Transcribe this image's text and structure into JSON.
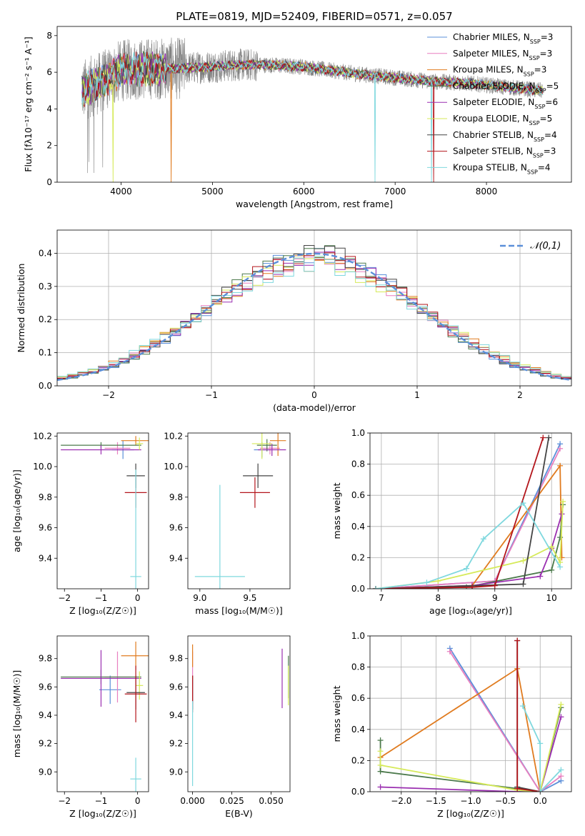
{
  "figure_title": "PLATE=0819, MJD=52409, FIBERID=0571, z=0.057",
  "colors": {
    "Chabrier MILES": "#5b8fd9",
    "Salpeter MILES": "#e87fbf",
    "Kroupa MILES": "#e07b1f",
    "Chabrier ELODIE": "#4c7a4c",
    "Salpeter ELODIE": "#9a2fb0",
    "Kroupa ELODIE": "#d6ea5a",
    "Chabrier STELIB": "#444444",
    "Salpeter STELIB": "#b3151b",
    "Kroupa STELIB": "#7fd8de",
    "data": "#808080",
    "normal": "#5b8fd9"
  },
  "chart_data": [
    {
      "id": "spectrum",
      "type": "line",
      "xlabel": "wavelength [Angstrom, rest frame]",
      "ylabel": "Flux [fλ10⁻¹⁷ erg cm⁻² s⁻¹ A⁻¹]",
      "xlim": [
        3300,
        8930
      ],
      "ylim": [
        0,
        8.5
      ],
      "xticks": [
        4000,
        5000,
        6000,
        7000,
        8000
      ],
      "yticks": [
        0,
        2,
        4,
        6,
        8
      ],
      "grid": false,
      "legend_position": "right",
      "legend": [
        {
          "name": "Chabrier MILES",
          "nssp": "3"
        },
        {
          "name": "Salpeter MILES",
          "nssp": "3"
        },
        {
          "name": "Kroupa MILES",
          "nssp": "3"
        },
        {
          "name": "Chabrier ELODIE",
          "nssp": "5"
        },
        {
          "name": "Salpeter ELODIE",
          "nssp": "6"
        },
        {
          "name": "Kroupa ELODIE",
          "nssp": "5"
        },
        {
          "name": "Chabrier STELIB",
          "nssp": "4"
        },
        {
          "name": "Salpeter STELIB",
          "nssp": "3"
        },
        {
          "name": "Kroupa STELIB",
          "nssp": "4"
        }
      ],
      "continuum": {
        "x": [
          3570,
          3800,
          4000,
          4300,
          4600,
          5000,
          5300,
          5600,
          6000,
          6300,
          6600,
          7000,
          7400,
          7800,
          8200,
          8600
        ],
        "y": [
          5.0,
          5.5,
          6.1,
          6.2,
          6.2,
          6.3,
          6.4,
          6.4,
          6.3,
          6.1,
          5.9,
          5.7,
          5.5,
          5.4,
          5.2,
          5.0
        ]
      }
    },
    {
      "id": "residual_histogram",
      "type": "step",
      "xlabel": "(data-model)/error",
      "ylabel": "Normed distribution",
      "xlim": [
        -2.5,
        2.5
      ],
      "ylim": [
        0,
        0.47
      ],
      "xticks": [
        -2,
        -1,
        0,
        1,
        2
      ],
      "yticks": [
        0.0,
        0.1,
        0.2,
        0.3,
        0.4
      ],
      "grid": true,
      "reference_curve": {
        "name": "𝒩(0,1)",
        "mean": 0,
        "sigma": 1
      },
      "bin_width": 0.1
    },
    {
      "id": "age_vs_Z",
      "type": "errorbar",
      "xlabel": "Z [log₁₀(Z/Z☉)]",
      "ylabel": "age  [log₁₀(age/yr)]",
      "xlim": [
        -2.2,
        0.3
      ],
      "ylim": [
        9.2,
        10.22
      ],
      "xticks": [
        -2,
        -1,
        0
      ],
      "yticks": [
        9.4,
        9.6,
        9.8,
        10.0,
        10.2
      ],
      "points": [
        {
          "model": "Chabrier MILES",
          "x": -0.4,
          "xerr": 0.3,
          "y": 10.11,
          "yerr": 0.06
        },
        {
          "model": "Salpeter MILES",
          "x": -0.55,
          "xerr": 0.35,
          "y": 10.12,
          "yerr": 0.04
        },
        {
          "model": "Kroupa MILES",
          "x": -0.05,
          "xerr": 0.4,
          "y": 10.17,
          "yerr": 0.03
        },
        {
          "model": "Chabrier ELODIE",
          "x": -1.0,
          "xerr": 1.1,
          "y": 10.14,
          "yerr": 0.02
        },
        {
          "model": "Salpeter ELODIE",
          "x": -1.0,
          "xerr": 1.1,
          "y": 10.11,
          "yerr": 0.03
        },
        {
          "model": "Kroupa ELODIE",
          "x": 0.05,
          "xerr": 0.1,
          "y": 10.15,
          "yerr": 0.04
        },
        {
          "model": "Chabrier STELIB",
          "x": -0.05,
          "xerr": 0.25,
          "y": 9.94,
          "yerr": 0.08
        },
        {
          "model": "Salpeter STELIB",
          "x": -0.05,
          "xerr": 0.3,
          "y": 9.83,
          "yerr": 0.1
        },
        {
          "model": "Kroupa STELIB",
          "x": -0.05,
          "xerr": 0.15,
          "y": 9.28,
          "yerr": 0.7
        }
      ]
    },
    {
      "id": "age_vs_mass",
      "type": "errorbar",
      "xlabel": "mass [log₁₀(M/M☉)]",
      "ylabel": "",
      "xlim": [
        8.88,
        9.9
      ],
      "ylim": [
        9.2,
        10.22
      ],
      "xticks": [
        9.0,
        9.5
      ],
      "yticks": [
        9.4,
        9.6,
        9.8,
        10.0,
        10.2
      ],
      "points": [
        {
          "model": "Chabrier MILES",
          "x": 9.62,
          "xerr": 0.08,
          "y": 10.11,
          "yerr": 0.05
        },
        {
          "model": "Salpeter MILES",
          "x": 9.7,
          "xerr": 0.1,
          "y": 10.12,
          "yerr": 0.04
        },
        {
          "model": "Kroupa MILES",
          "x": 9.78,
          "xerr": 0.08,
          "y": 10.17,
          "yerr": 0.1
        },
        {
          "model": "Chabrier ELODIE",
          "x": 9.67,
          "xerr": 0.1,
          "y": 10.14,
          "yerr": 0.04
        },
        {
          "model": "Salpeter ELODIE",
          "x": 9.72,
          "xerr": 0.14,
          "y": 10.11,
          "yerr": 0.04
        },
        {
          "model": "Kroupa ELODIE",
          "x": 9.62,
          "xerr": 0.1,
          "y": 10.15,
          "yerr": 0.1
        },
        {
          "model": "Chabrier STELIB",
          "x": 9.58,
          "xerr": 0.15,
          "y": 9.94,
          "yerr": 0.08
        },
        {
          "model": "Salpeter STELIB",
          "x": 9.55,
          "xerr": 0.15,
          "y": 9.83,
          "yerr": 0.1
        },
        {
          "model": "Kroupa STELIB",
          "x": 9.2,
          "xerr": 0.25,
          "y": 9.28,
          "yerr": 0.6
        }
      ]
    },
    {
      "id": "mass_weight_vs_age",
      "type": "line",
      "xlabel": "age  [log₁₀(age/yr)]",
      "ylabel": "mass weight",
      "xlim": [
        6.8,
        10.35
      ],
      "ylim": [
        0,
        1.0
      ],
      "xticks": [
        7,
        8,
        9,
        10
      ],
      "yticks": [
        0.0,
        0.2,
        0.4,
        0.6,
        0.8,
        1.0
      ],
      "grid": true,
      "series": [
        {
          "name": "Chabrier MILES",
          "x": [
            6.9,
            9.0,
            10.15
          ],
          "y": [
            0.0,
            0.05,
            0.93
          ]
        },
        {
          "name": "Salpeter MILES",
          "x": [
            6.9,
            9.0,
            10.15
          ],
          "y": [
            0.0,
            0.05,
            0.9
          ]
        },
        {
          "name": "Kroupa MILES",
          "x": [
            6.9,
            8.6,
            10.15,
            10.18
          ],
          "y": [
            0.0,
            0.02,
            0.79,
            0.2
          ]
        },
        {
          "name": "Chabrier ELODIE",
          "x": [
            6.9,
            8.5,
            10.0,
            10.15,
            10.2
          ],
          "y": [
            0.0,
            0.01,
            0.12,
            0.33,
            0.54
          ]
        },
        {
          "name": "Salpeter ELODIE",
          "x": [
            6.9,
            8.6,
            9.8,
            10.0,
            10.18
          ],
          "y": [
            0.0,
            0.02,
            0.08,
            0.26,
            0.48
          ]
        },
        {
          "name": "Kroupa ELODIE",
          "x": [
            6.9,
            8.0,
            9.5,
            10.0,
            10.15,
            10.2
          ],
          "y": [
            0.0,
            0.05,
            0.18,
            0.27,
            0.17,
            0.56
          ]
        },
        {
          "name": "Chabrier STELIB",
          "x": [
            6.9,
            9.5,
            9.95
          ],
          "y": [
            0.0,
            0.03,
            0.97
          ]
        },
        {
          "name": "Salpeter STELIB",
          "x": [
            6.9,
            8.6,
            9.0,
            9.85
          ],
          "y": [
            0.0,
            0.01,
            0.02,
            0.97
          ]
        },
        {
          "name": "Kroupa STELIB",
          "x": [
            6.9,
            7.8,
            8.5,
            8.8,
            9.5,
            10.15
          ],
          "y": [
            0.0,
            0.04,
            0.13,
            0.32,
            0.55,
            0.14
          ]
        }
      ]
    },
    {
      "id": "mass_vs_Z",
      "type": "errorbar",
      "xlabel": "Z [log₁₀(Z/Z☉)]",
      "ylabel": "mass [log₁₀(M/M☉)]",
      "xlim": [
        -2.2,
        0.3
      ],
      "ylim": [
        8.86,
        9.96
      ],
      "xticks": [
        -2,
        -1,
        0
      ],
      "yticks": [
        9.0,
        9.2,
        9.4,
        9.6,
        9.8
      ],
      "points": [
        {
          "model": "Chabrier MILES",
          "x": -0.75,
          "xerr": 0.3,
          "y": 9.58,
          "yerr": 0.1
        },
        {
          "model": "Salpeter MILES",
          "x": -0.55,
          "xerr": 0.35,
          "y": 9.67,
          "yerr": 0.18
        },
        {
          "model": "Kroupa MILES",
          "x": -0.05,
          "xerr": 0.4,
          "y": 9.82,
          "yerr": 0.1
        },
        {
          "model": "Chabrier ELODIE",
          "x": -1.0,
          "xerr": 1.1,
          "y": 9.67,
          "yerr": 0.05
        },
        {
          "model": "Salpeter ELODIE",
          "x": -1.0,
          "xerr": 1.1,
          "y": 9.66,
          "yerr": 0.2
        },
        {
          "model": "Kroupa ELODIE",
          "x": 0.05,
          "xerr": 0.1,
          "y": 9.61,
          "yerr": 0.1
        },
        {
          "model": "Chabrier STELIB",
          "x": -0.05,
          "xerr": 0.25,
          "y": 9.56,
          "yerr": 0.12
        },
        {
          "model": "Salpeter STELIB",
          "x": -0.05,
          "xerr": 0.3,
          "y": 9.55,
          "yerr": 0.2
        },
        {
          "model": "Kroupa STELIB",
          "x": -0.05,
          "xerr": 0.15,
          "y": 8.95,
          "yerr": 0.15
        }
      ]
    },
    {
      "id": "mass_vs_EBV",
      "type": "errorbar",
      "xlabel": "E(B-V)",
      "ylabel": "",
      "xlim": [
        -0.003,
        0.062
      ],
      "ylim": [
        8.86,
        9.96
      ],
      "xticks": [
        0.0,
        0.025,
        0.05
      ],
      "tick_labels": [
        "0.000",
        "0.025",
        "0.050"
      ],
      "yticks": [
        9.0,
        9.2,
        9.4,
        9.6,
        9.8
      ],
      "points": [
        {
          "model": "Chabrier MILES",
          "x": 0.0,
          "y": 9.58,
          "yerr": 0.1
        },
        {
          "model": "Salpeter MILES",
          "x": 0.0,
          "y": 9.67,
          "yerr": 0.18
        },
        {
          "model": "Kroupa MILES",
          "x": 0.0,
          "y": 9.82,
          "yerr": 0.08
        },
        {
          "model": "Chabrier ELODIE",
          "x": 0.061,
          "y": 9.67,
          "yerr": 0.15
        },
        {
          "model": "Salpeter ELODIE",
          "x": 0.057,
          "y": 9.66,
          "yerr": 0.21
        },
        {
          "model": "Kroupa ELODIE",
          "x": 0.061,
          "y": 9.61,
          "yerr": 0.14
        },
        {
          "model": "Chabrier STELIB",
          "x": 0.0,
          "y": 9.56,
          "yerr": 0.12
        },
        {
          "model": "Salpeter STELIB",
          "x": 0.0,
          "y": 9.55,
          "yerr": 0.13
        },
        {
          "model": "Kroupa STELIB",
          "x": 0.0,
          "y": 9.2,
          "yerr": 0.3
        }
      ]
    },
    {
      "id": "mass_weight_vs_Z",
      "type": "line",
      "xlabel": "Z [log₁₀(Z/Z☉)]",
      "ylabel": "mass weight",
      "xlim": [
        -2.45,
        0.45
      ],
      "ylim": [
        0,
        1.0
      ],
      "xticks": [
        -2.0,
        -1.5,
        -1.0,
        -0.5,
        0.0
      ],
      "tick_labels": [
        "−2.0",
        "−1.5",
        "−1.0",
        "−0.5",
        "0.0"
      ],
      "yticks": [
        0.0,
        0.2,
        0.4,
        0.6,
        0.8,
        1.0
      ],
      "grid": true,
      "series": [
        {
          "name": "Chabrier MILES",
          "x": [
            0.3,
            0.0,
            -1.3
          ],
          "y": [
            0.07,
            0.0,
            0.92
          ]
        },
        {
          "name": "Salpeter MILES",
          "x": [
            0.3,
            0.0,
            -1.3
          ],
          "y": [
            0.1,
            0.0,
            0.9
          ]
        },
        {
          "name": "Kroupa MILES",
          "x": [
            -2.3,
            -0.33,
            0.0
          ],
          "y": [
            0.22,
            0.79,
            0.0
          ]
        },
        {
          "name": "Chabrier ELODIE",
          "x": [
            -2.3,
            -2.3,
            -0.33,
            0.0,
            0.3
          ],
          "y": [
            0.33,
            0.13,
            0.02,
            0.0,
            0.54
          ]
        },
        {
          "name": "Salpeter ELODIE",
          "x": [
            -2.3,
            -0.33,
            0.0,
            0.3
          ],
          "y": [
            0.03,
            0.0,
            0.0,
            0.48
          ]
        },
        {
          "name": "Kroupa ELODIE",
          "x": [
            -2.3,
            -2.3,
            -0.33,
            0.0,
            0.3
          ],
          "y": [
            0.26,
            0.17,
            0.01,
            0.0,
            0.56
          ]
        },
        {
          "name": "Chabrier STELIB",
          "x": [
            -0.33,
            -0.33,
            0.0
          ],
          "y": [
            0.97,
            0.03,
            0.0
          ]
        },
        {
          "name": "Salpeter STELIB",
          "x": [
            -0.33,
            -0.33,
            0.0
          ],
          "y": [
            0.97,
            0.02,
            0.0
          ]
        },
        {
          "name": "Kroupa STELIB",
          "x": [
            -0.25,
            0.0,
            0.0,
            0.3
          ],
          "y": [
            0.55,
            0.31,
            0.0,
            0.14
          ]
        }
      ]
    }
  ]
}
